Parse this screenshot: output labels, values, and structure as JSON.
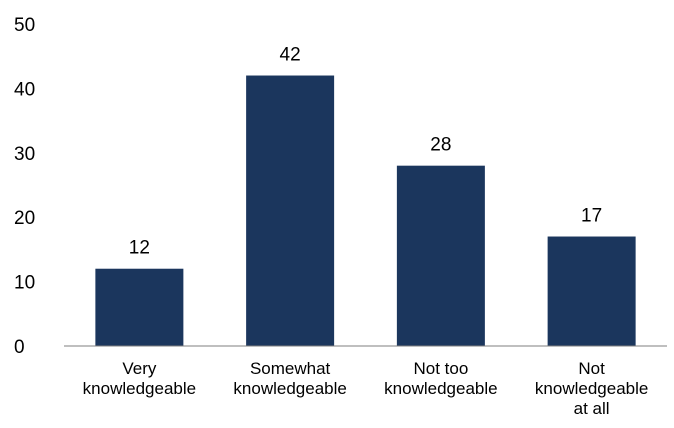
{
  "chart_data": {
    "type": "bar",
    "categories": [
      [
        "Very",
        "knowledgeable"
      ],
      [
        "Somewhat",
        "knowledgeable"
      ],
      [
        "Not too",
        "knowledgeable"
      ],
      [
        "Not",
        "knowledgeable",
        "at all"
      ]
    ],
    "values": [
      12,
      42,
      28,
      17
    ],
    "ylim": [
      0,
      50
    ],
    "yticks": [
      0,
      10,
      20,
      30,
      40,
      50
    ],
    "grid": false,
    "bar_color": "#1b365d",
    "axis_color": "#7f7f7f"
  }
}
